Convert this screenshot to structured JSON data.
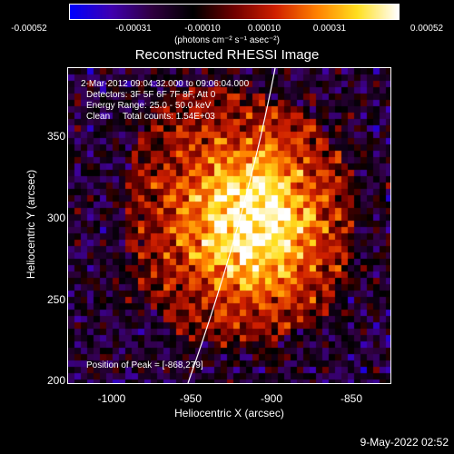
{
  "colorbar": {
    "ticks": [
      "-0.00052",
      "-0.00031",
      "-0.00010",
      "0.00010",
      "0.00031",
      "0.00052"
    ],
    "units": "(photons cm⁻² s⁻¹ asec⁻²)",
    "colormap": [
      "#0000ff",
      "#4000b0",
      "#300040",
      "#000000",
      "#700000",
      "#d02000",
      "#ff8000",
      "#ffe020",
      "#ffffff"
    ]
  },
  "title": "Reconstructed RHESSI Image",
  "annotations": {
    "time_range": "2-Mar-2012 09:04:32.000 to 09:06:04.000",
    "detectors": "Detectors: 3F 5F 6F 7F 8F, Att 0",
    "energy": "Energy Range: 25.0 - 50.0 keV",
    "clean": "Clean     Total counts: 1.54E+03",
    "peak": "Position of Peak = [-868,279]"
  },
  "axes": {
    "xlabel": "Heliocentric X (arcsec)",
    "ylabel": "Heliocentric Y (arcsec)",
    "xlim": [
      -1023,
      -830
    ],
    "ylim": [
      198,
      387
    ],
    "xticks": [
      "-1000",
      "-950",
      "-900",
      "-850"
    ],
    "yticks": [
      "200",
      "250",
      "300",
      "350"
    ]
  },
  "timestamp": "9-May-2022 02:52"
}
